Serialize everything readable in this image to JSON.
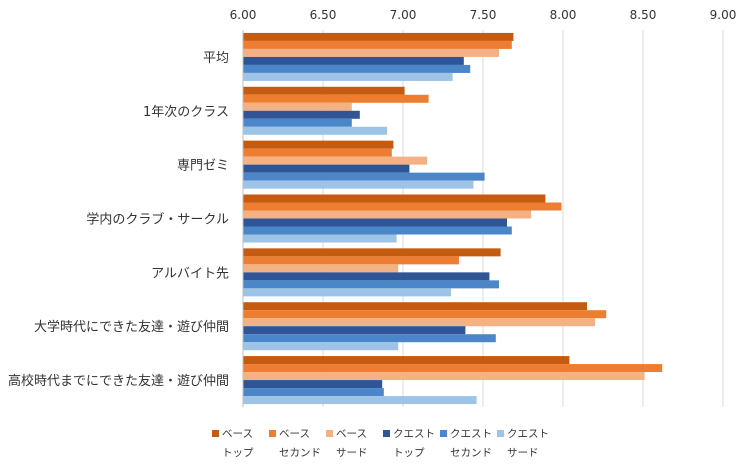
{
  "chart_data": {
    "type": "bar",
    "orientation": "horizontal",
    "xlim": [
      6.0,
      9.0
    ],
    "x_ticks": [
      "6.00",
      "6.50",
      "7.00",
      "7.50",
      "8.00",
      "8.50",
      "9.00"
    ],
    "grid": "vertical",
    "legend_position": "bottom",
    "categories": [
      "平均",
      "1年次のクラス",
      "専門ゼミ",
      "学内のクラブ・サークル",
      "アルバイト先",
      "大学時代にできた友達・遊び仲間",
      "高校時代までにできた友達・遊び仲間"
    ],
    "series": [
      {
        "name": [
          "ベース",
          "トップ"
        ],
        "color": "#C55A11",
        "values": [
          7.69,
          7.01,
          6.94,
          7.89,
          7.61,
          8.15,
          8.04
        ]
      },
      {
        "name": [
          "ベース",
          "セカンド"
        ],
        "color": "#ED7D31",
        "values": [
          7.68,
          7.16,
          6.93,
          7.99,
          7.35,
          8.27,
          8.62
        ]
      },
      {
        "name": [
          "ベース",
          "サード"
        ],
        "color": "#F4B183",
        "values": [
          7.6,
          6.68,
          7.15,
          7.8,
          6.97,
          8.2,
          8.51
        ]
      },
      {
        "name": [
          "クエスト",
          "トップ"
        ],
        "color": "#2F5597",
        "values": [
          7.38,
          6.73,
          7.04,
          7.65,
          7.54,
          7.39,
          6.87
        ]
      },
      {
        "name": [
          "クエスト",
          "セカンド"
        ],
        "color": "#4A86C8",
        "values": [
          7.42,
          6.68,
          7.51,
          7.68,
          7.6,
          7.58,
          6.88
        ]
      },
      {
        "name": [
          "クエスト",
          "サード"
        ],
        "color": "#9DC3E6",
        "values": [
          7.31,
          6.9,
          7.44,
          6.96,
          7.3,
          6.97,
          7.46
        ]
      }
    ]
  }
}
